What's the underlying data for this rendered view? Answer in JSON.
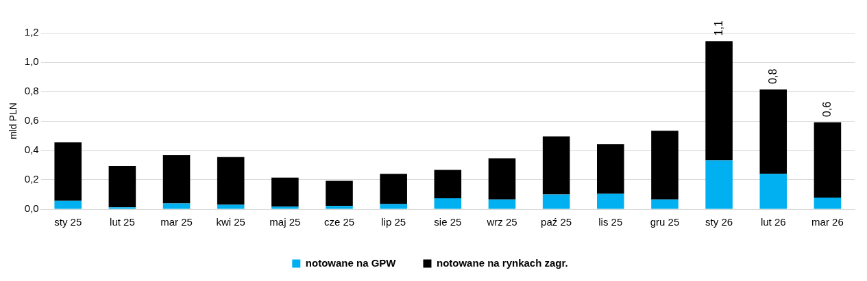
{
  "chart_data": {
    "type": "bar",
    "stacked": true,
    "ylabel": "mld PLN",
    "categories": [
      "sty 25",
      "lut 25",
      "mar 25",
      "kwi 25",
      "maj 25",
      "cze 25",
      "lip 25",
      "sie 25",
      "wrz 25",
      "paź 25",
      "lis 25",
      "gru 25",
      "sty 26",
      "lut 26",
      "mar 26"
    ],
    "series": [
      {
        "name": "notowane na GPW",
        "color": "#00b0f0",
        "values": [
          0.057,
          0.013,
          0.04,
          0.03,
          0.018,
          0.022,
          0.035,
          0.074,
          0.066,
          0.1,
          0.105,
          0.066,
          0.333,
          0.241,
          0.079
        ]
      },
      {
        "name": "notowane na rynkach zagr.",
        "color": "#000000",
        "values": [
          0.398,
          0.28,
          0.328,
          0.325,
          0.197,
          0.171,
          0.206,
          0.193,
          0.28,
          0.395,
          0.337,
          0.468,
          0.81,
          0.574,
          0.512
        ]
      }
    ],
    "totals": [
      null,
      null,
      null,
      null,
      null,
      null,
      null,
      null,
      null,
      null,
      null,
      null,
      "1,1",
      "0,8",
      "0,6"
    ],
    "ylim": [
      0,
      1.2
    ],
    "yticks": [
      {
        "value": 0,
        "label": "0,0"
      },
      {
        "value": 0.2,
        "label": "0,2"
      },
      {
        "value": 0.4,
        "label": "0,4"
      },
      {
        "value": 0.6,
        "label": "0,6"
      },
      {
        "value": 0.8,
        "label": "0,8"
      },
      {
        "value": 1,
        "label": "1,0"
      },
      {
        "value": 1.2,
        "label": "1,2"
      }
    ],
    "grid": "y",
    "legend": "bottom"
  }
}
